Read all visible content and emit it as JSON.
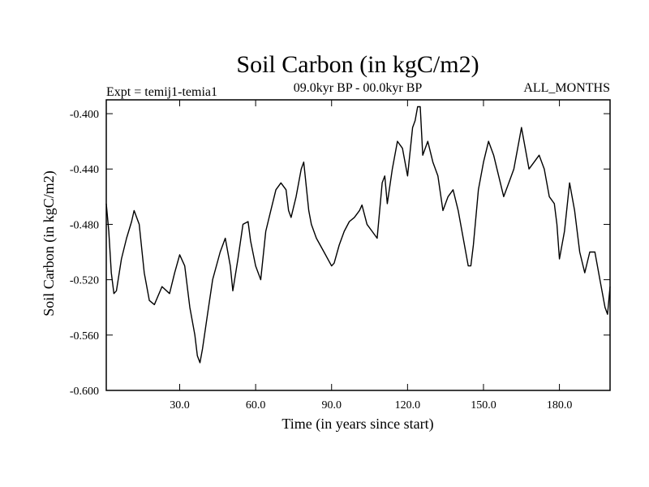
{
  "chart_data": {
    "type": "line",
    "title": "Soil Carbon (in kgC/m2)",
    "subtitle_left": "Expt = temij1-temia1",
    "subtitle_center": "09.0kyr BP - 00.0kyr BP",
    "subtitle_right": "ALL_MONTHS",
    "xlabel": "Time (in years since start)",
    "ylabel": "Soil Carbon (in kgC/m2)",
    "xlim": [
      1,
      200
    ],
    "ylim": [
      -0.6,
      -0.39
    ],
    "x_ticks": [
      30,
      60,
      90,
      120,
      150,
      180
    ],
    "x_tick_labels": [
      "30.0",
      "60.0",
      "90.0",
      "120.0",
      "150.0",
      "180.0"
    ],
    "y_ticks": [
      -0.6,
      -0.56,
      -0.52,
      -0.48,
      -0.44,
      -0.4
    ],
    "y_tick_labels": [
      "-0.600",
      "-0.560",
      "-0.520",
      "-0.480",
      "-0.440",
      "-0.400"
    ],
    "series": [
      {
        "name": "Soil Carbon",
        "color": "#000000",
        "x": [
          1,
          2,
          3,
          4,
          5,
          7,
          9,
          11,
          12,
          14,
          16,
          18,
          20,
          23,
          26,
          28,
          30,
          32,
          34,
          36,
          37,
          38,
          39,
          41,
          43,
          46,
          48,
          50,
          51,
          53,
          55,
          57,
          58,
          60,
          62,
          64,
          66,
          68,
          70,
          72,
          73,
          74,
          76,
          78,
          79,
          81,
          82,
          84,
          87,
          90,
          91,
          93,
          95,
          97,
          99,
          101,
          102,
          104,
          106,
          108,
          109,
          110,
          111,
          112,
          114,
          116,
          118,
          120,
          122,
          123,
          124,
          125,
          126,
          128,
          130,
          132,
          134,
          136,
          138,
          140,
          142,
          144,
          145,
          146,
          148,
          150,
          152,
          154,
          156,
          158,
          160,
          162,
          164,
          165,
          166,
          168,
          170,
          172,
          174,
          176,
          178,
          179,
          180,
          182,
          184,
          186,
          188,
          190,
          192,
          194,
          196,
          198,
          199,
          200
        ],
        "values": [
          -0.465,
          -0.485,
          -0.515,
          -0.53,
          -0.528,
          -0.505,
          -0.49,
          -0.478,
          -0.47,
          -0.48,
          -0.515,
          -0.535,
          -0.538,
          -0.525,
          -0.53,
          -0.515,
          -0.502,
          -0.51,
          -0.54,
          -0.56,
          -0.575,
          -0.58,
          -0.57,
          -0.545,
          -0.52,
          -0.5,
          -0.49,
          -0.51,
          -0.528,
          -0.505,
          -0.48,
          -0.478,
          -0.492,
          -0.51,
          -0.52,
          -0.485,
          -0.47,
          -0.455,
          -0.45,
          -0.455,
          -0.47,
          -0.475,
          -0.46,
          -0.44,
          -0.435,
          -0.47,
          -0.48,
          -0.49,
          -0.5,
          -0.51,
          -0.508,
          -0.495,
          -0.485,
          -0.478,
          -0.475,
          -0.47,
          -0.466,
          -0.48,
          -0.485,
          -0.49,
          -0.47,
          -0.45,
          -0.445,
          -0.465,
          -0.44,
          -0.42,
          -0.425,
          -0.445,
          -0.41,
          -0.405,
          -0.395,
          -0.395,
          -0.43,
          -0.42,
          -0.435,
          -0.445,
          -0.47,
          -0.46,
          -0.455,
          -0.47,
          -0.49,
          -0.51,
          -0.51,
          -0.495,
          -0.455,
          -0.435,
          -0.42,
          -0.43,
          -0.445,
          -0.46,
          -0.45,
          -0.44,
          -0.42,
          -0.41,
          -0.42,
          -0.44,
          -0.435,
          -0.43,
          -0.44,
          -0.46,
          -0.465,
          -0.48,
          -0.505,
          -0.485,
          -0.45,
          -0.47,
          -0.5,
          -0.515,
          -0.5,
          -0.5,
          -0.52,
          -0.54,
          -0.545,
          -0.525
        ]
      }
    ]
  }
}
